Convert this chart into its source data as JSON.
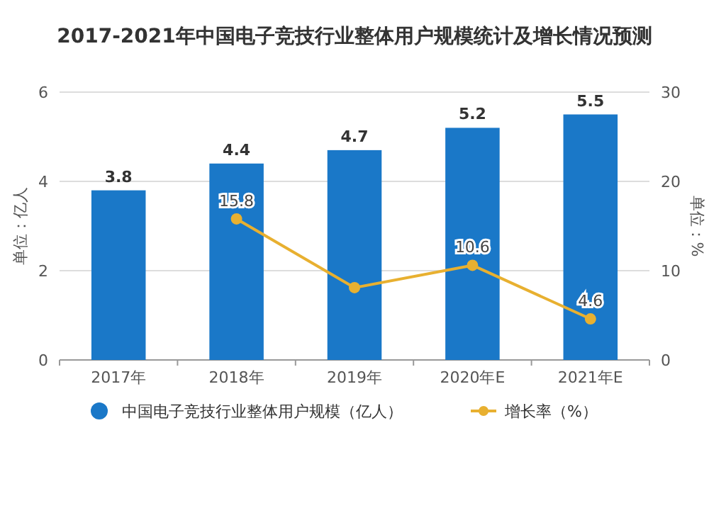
{
  "chart_data": {
    "type": "bar",
    "title": "2017-2021年中国电子竞技行业整体用户规模统计及增长情况预测",
    "ylabel": "单位：亿人",
    "y2label": "单位：%",
    "categories": [
      "2017年",
      "2018年",
      "2019年",
      "2020年E",
      "2021年E"
    ],
    "series": [
      {
        "name": "中国电子竞技行业整体用户规模（亿人）",
        "color": "#1a78c8",
        "values": [
          3.8,
          4.4,
          4.7,
          5.2,
          5.5
        ],
        "value_labels": [
          "3.8",
          "4.4",
          "4.7",
          "5.2",
          "5.5"
        ]
      },
      {
        "name": "增长率（%）",
        "type": "line",
        "axis": "y2",
        "color": "#e8b030",
        "marker": "circle",
        "values": [
          null,
          15.8,
          8.1,
          10.6,
          4.6
        ],
        "value_labels": [
          null,
          "15.8",
          null,
          "10.6",
          "4.6"
        ]
      }
    ],
    "ylim": [
      0,
      6
    ],
    "yticks": [
      0,
      2,
      4,
      6
    ],
    "y2lim": [
      0,
      30
    ],
    "y2ticks": [
      0,
      10,
      20,
      30
    ],
    "grid": "y",
    "legend": "bottom"
  }
}
